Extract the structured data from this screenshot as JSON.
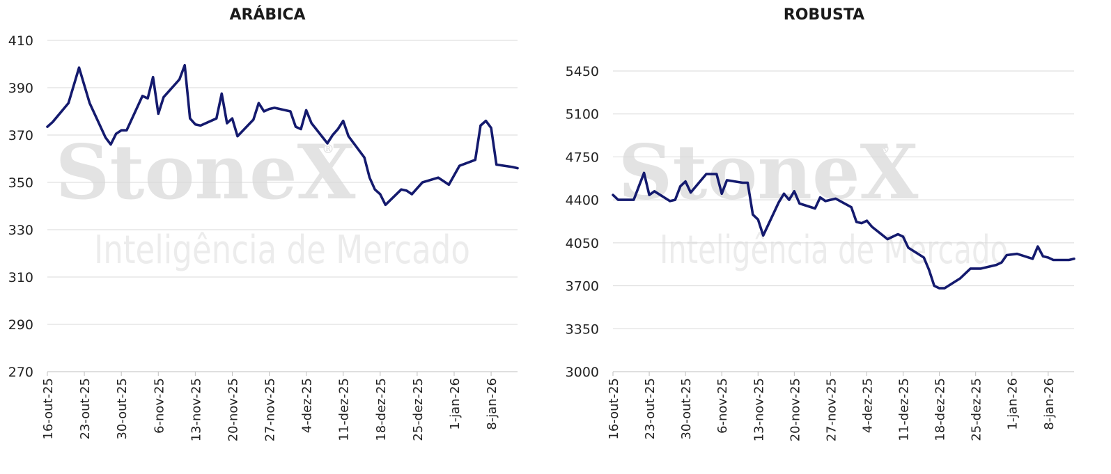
{
  "watermark": {
    "logo": "StoneX",
    "reg": "®",
    "subtitle": "Inteligência de Mercado"
  },
  "colors": {
    "series": "#141a6e",
    "grid": "#d9d9d9"
  },
  "chart_data": [
    {
      "type": "line",
      "title": "ARÁBICA",
      "ylim": [
        270,
        410
      ],
      "yticks": [
        270,
        290,
        310,
        330,
        350,
        370,
        390,
        410
      ],
      "xrange": [
        "2025-10-16",
        "2026-01-13"
      ],
      "xtick_labels": [
        "16-out-25",
        "23-out-25",
        "30-out-25",
        "6-nov-25",
        "13-nov-25",
        "20-nov-25",
        "27-nov-25",
        "4-dez-25",
        "11-dez-25",
        "18-dez-25",
        "25-dez-25",
        "1-jan-26",
        "8-jan-26"
      ],
      "xtick_dates": [
        "2025-10-16",
        "2025-10-23",
        "2025-10-30",
        "2025-11-06",
        "2025-11-13",
        "2025-11-20",
        "2025-11-27",
        "2025-12-04",
        "2025-12-11",
        "2025-12-18",
        "2025-12-25",
        "2026-01-01",
        "2026-01-08"
      ],
      "grid": true,
      "series": [
        {
          "x": [
            "2025-10-16",
            "2025-10-17",
            "2025-10-20",
            "2025-10-21",
            "2025-10-22",
            "2025-10-23",
            "2025-10-24",
            "2025-10-27",
            "2025-10-28",
            "2025-10-29",
            "2025-10-30",
            "2025-10-31",
            "2025-11-03",
            "2025-11-04",
            "2025-11-05",
            "2025-11-06",
            "2025-11-07",
            "2025-11-10",
            "2025-11-11",
            "2025-11-12",
            "2025-11-13",
            "2025-11-14",
            "2025-11-17",
            "2025-11-18",
            "2025-11-19",
            "2025-11-20",
            "2025-11-21",
            "2025-11-24",
            "2025-11-25",
            "2025-11-26",
            "2025-11-27",
            "2025-11-28",
            "2025-12-01",
            "2025-12-02",
            "2025-12-03",
            "2025-12-04",
            "2025-12-05",
            "2025-12-08",
            "2025-12-09",
            "2025-12-10",
            "2025-12-11",
            "2025-12-12",
            "2025-12-15",
            "2025-12-16",
            "2025-12-17",
            "2025-12-18",
            "2025-12-19",
            "2025-12-22",
            "2025-12-23",
            "2025-12-24",
            "2025-12-26",
            "2025-12-29",
            "2025-12-30",
            "2025-12-31",
            "2026-01-02",
            "2026-01-05",
            "2026-01-06",
            "2026-01-07",
            "2026-01-08",
            "2026-01-09",
            "2026-01-12",
            "2026-01-13"
          ],
          "values": [
            373.5,
            375.5,
            383.5,
            391,
            398.5,
            391,
            383.5,
            369,
            366,
            370.5,
            372,
            372,
            386.5,
            385.5,
            394.5,
            379,
            386,
            393.5,
            399.5,
            377,
            374.5,
            374,
            377,
            387.5,
            375,
            377,
            369.5,
            376.5,
            383.5,
            380,
            381,
            381.5,
            380,
            373.5,
            372.5,
            380.5,
            375,
            366.5,
            370,
            372.5,
            376,
            369.5,
            360.5,
            352,
            347,
            345,
            340.5,
            347,
            346.5,
            345,
            350,
            352,
            350.5,
            349,
            357,
            359.5,
            374,
            376,
            373,
            357.5,
            356.5,
            356
          ]
        }
      ]
    },
    {
      "type": "line",
      "title": "ROBUSTA",
      "ylim": [
        3000,
        5450
      ],
      "yticks": [
        3000,
        3350,
        3700,
        4050,
        4400,
        4750,
        5100,
        5450
      ],
      "xrange": [
        "2025-10-16",
        "2026-01-13"
      ],
      "xtick_labels": [
        "16-out-25",
        "23-out-25",
        "30-out-25",
        "6-nov-25",
        "13-nov-25",
        "20-nov-25",
        "27-nov-25",
        "4-dez-25",
        "11-dez-25",
        "18-dez-25",
        "25-dez-25",
        "1-jan-26",
        "8-jan-26"
      ],
      "xtick_dates": [
        "2025-10-16",
        "2025-10-23",
        "2025-10-30",
        "2025-11-06",
        "2025-11-13",
        "2025-11-20",
        "2025-11-27",
        "2025-12-04",
        "2025-12-11",
        "2025-12-18",
        "2025-12-25",
        "2026-01-01",
        "2026-01-08"
      ],
      "grid": true,
      "series": [
        {
          "x": [
            "2025-10-16",
            "2025-10-17",
            "2025-10-20",
            "2025-10-21",
            "2025-10-22",
            "2025-10-23",
            "2025-10-24",
            "2025-10-27",
            "2025-10-28",
            "2025-10-29",
            "2025-10-30",
            "2025-10-31",
            "2025-11-03",
            "2025-11-04",
            "2025-11-05",
            "2025-11-06",
            "2025-11-07",
            "2025-11-10",
            "2025-11-11",
            "2025-11-12",
            "2025-11-13",
            "2025-11-14",
            "2025-11-17",
            "2025-11-18",
            "2025-11-19",
            "2025-11-20",
            "2025-11-21",
            "2025-11-24",
            "2025-11-25",
            "2025-11-26",
            "2025-11-27",
            "2025-11-28",
            "2025-12-01",
            "2025-12-02",
            "2025-12-03",
            "2025-12-04",
            "2025-12-05",
            "2025-12-08",
            "2025-12-09",
            "2025-12-10",
            "2025-12-11",
            "2025-12-12",
            "2025-12-15",
            "2025-12-16",
            "2025-12-17",
            "2025-12-18",
            "2025-12-19",
            "2025-12-22",
            "2025-12-23",
            "2025-12-24",
            "2025-12-26",
            "2025-12-29",
            "2025-12-30",
            "2025-12-31",
            "2026-01-02",
            "2026-01-05",
            "2026-01-06",
            "2026-01-07",
            "2026-01-08",
            "2026-01-09",
            "2026-01-12",
            "2026-01-13"
          ],
          "values": [
            4440,
            4400,
            4400,
            4510,
            4620,
            4440,
            4470,
            4390,
            4400,
            4510,
            4550,
            4460,
            4610,
            4610,
            4610,
            4450,
            4560,
            4540,
            4540,
            4280,
            4240,
            4110,
            4380,
            4450,
            4400,
            4470,
            4370,
            4330,
            4420,
            4390,
            4400,
            4410,
            4340,
            4220,
            4210,
            4230,
            4180,
            4080,
            4100,
            4120,
            4100,
            4010,
            3930,
            3830,
            3700,
            3680,
            3680,
            3760,
            3800,
            3840,
            3840,
            3870,
            3890,
            3950,
            3960,
            3920,
            4020,
            3940,
            3930,
            3910,
            3910,
            3920
          ]
        }
      ]
    }
  ]
}
